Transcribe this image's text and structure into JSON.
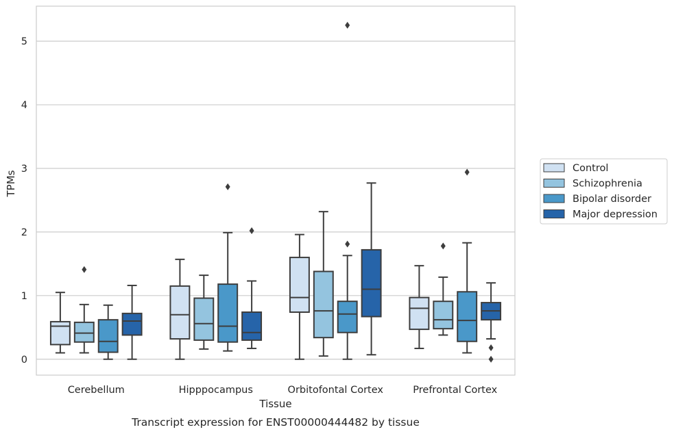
{
  "chart_data": {
    "type": "box",
    "title": "Transcript expression for ENST00000444482 by tissue",
    "xlabel": "Tissue",
    "ylabel": "TPMs",
    "ylim": [
      -0.25,
      5.55
    ],
    "yticks": [
      0,
      1,
      2,
      3,
      4,
      5
    ],
    "grid": true,
    "legend_position": "right",
    "categories": [
      "Cerebellum",
      "Hipppocampus",
      "Orbitofontal Cortex",
      "Prefrontal Cortex"
    ],
    "series": [
      {
        "name": "Control",
        "color": "#d0e1f2",
        "boxes": [
          {
            "whisker_low": 0.1,
            "q1": 0.23,
            "median": 0.52,
            "q3": 0.59,
            "whisker_high": 1.05,
            "outliers": []
          },
          {
            "whisker_low": 0.0,
            "q1": 0.32,
            "median": 0.7,
            "q3": 1.15,
            "whisker_high": 1.57,
            "outliers": []
          },
          {
            "whisker_low": 0.0,
            "q1": 0.74,
            "median": 0.97,
            "q3": 1.6,
            "whisker_high": 1.96,
            "outliers": []
          },
          {
            "whisker_low": 0.17,
            "q1": 0.47,
            "median": 0.8,
            "q3": 0.97,
            "whisker_high": 1.47,
            "outliers": []
          }
        ]
      },
      {
        "name": "Schizophrenia",
        "color": "#94c4df",
        "boxes": [
          {
            "whisker_low": 0.1,
            "q1": 0.27,
            "median": 0.41,
            "q3": 0.58,
            "whisker_high": 0.86,
            "outliers": [
              1.41
            ]
          },
          {
            "whisker_low": 0.16,
            "q1": 0.3,
            "median": 0.56,
            "q3": 0.96,
            "whisker_high": 1.32,
            "outliers": []
          },
          {
            "whisker_low": 0.05,
            "q1": 0.34,
            "median": 0.76,
            "q3": 1.38,
            "whisker_high": 2.32,
            "outliers": []
          },
          {
            "whisker_low": 0.38,
            "q1": 0.48,
            "median": 0.62,
            "q3": 0.91,
            "whisker_high": 1.29,
            "outliers": [
              1.78
            ]
          }
        ]
      },
      {
        "name": "Bipolar disorder",
        "color": "#4a98c9",
        "boxes": [
          {
            "whisker_low": 0.0,
            "q1": 0.11,
            "median": 0.28,
            "q3": 0.62,
            "whisker_high": 0.85,
            "outliers": []
          },
          {
            "whisker_low": 0.13,
            "q1": 0.27,
            "median": 0.52,
            "q3": 1.18,
            "whisker_high": 1.99,
            "outliers": [
              2.71
            ]
          },
          {
            "whisker_low": 0.0,
            "q1": 0.42,
            "median": 0.71,
            "q3": 0.91,
            "whisker_high": 1.63,
            "outliers": [
              1.81,
              5.25
            ]
          },
          {
            "whisker_low": 0.1,
            "q1": 0.28,
            "median": 0.61,
            "q3": 1.06,
            "whisker_high": 1.83,
            "outliers": [
              2.94
            ]
          }
        ]
      },
      {
        "name": "Major depression",
        "color": "#2664a9",
        "boxes": [
          {
            "whisker_low": 0.0,
            "q1": 0.38,
            "median": 0.6,
            "q3": 0.72,
            "whisker_high": 1.16,
            "outliers": []
          },
          {
            "whisker_low": 0.17,
            "q1": 0.3,
            "median": 0.42,
            "q3": 0.74,
            "whisker_high": 1.23,
            "outliers": [
              2.02
            ]
          },
          {
            "whisker_low": 0.07,
            "q1": 0.67,
            "median": 1.1,
            "q3": 1.72,
            "whisker_high": 2.77,
            "outliers": []
          },
          {
            "whisker_low": 0.32,
            "q1": 0.62,
            "median": 0.76,
            "q3": 0.89,
            "whisker_high": 1.2,
            "outliers": [
              0.18,
              0.0
            ]
          }
        ]
      }
    ]
  }
}
